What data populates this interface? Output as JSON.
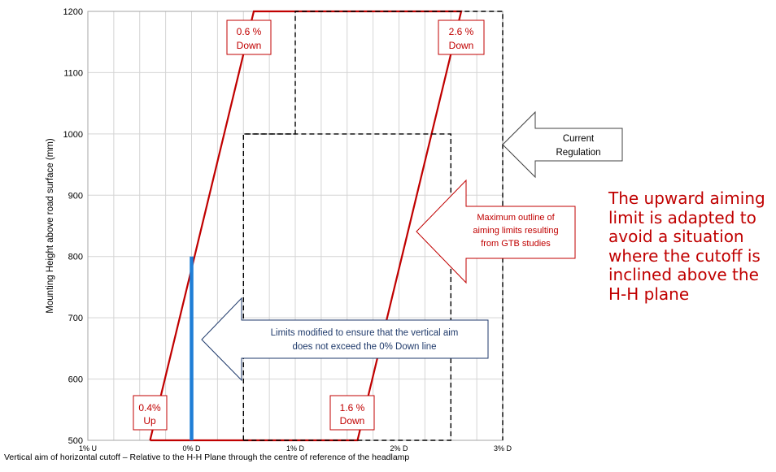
{
  "colors": {
    "red": "#c00000",
    "blue": "#1f7ed6",
    "navy": "#1f3a6b",
    "grid": "#d4d4d4",
    "black": "#000000"
  },
  "side_note": "The upward aiming limit is adapted to avoid a situation where the cutoff is inclined above the H-H plane",
  "chart_data": {
    "type": "line",
    "xlabel": "Vertical aim of horizontal cutoff – Relative to the H-H Plane through the centre of reference of the headlamp",
    "ylabel": "Mounting Height above road surface (mm)",
    "xlim": [
      -1,
      3
    ],
    "ylim": [
      500,
      1200
    ],
    "x_ticks": [
      -1,
      0,
      1,
      2,
      3
    ],
    "x_tick_labels": [
      "1% U",
      "0% D",
      "1% D",
      "2% D",
      "3% D"
    ],
    "y_ticks": [
      500,
      600,
      700,
      800,
      900,
      1000,
      1100,
      1200
    ],
    "y_tick_labels": [
      "500",
      "600",
      "700",
      "800",
      "900",
      "1000",
      "1100",
      "1200"
    ],
    "grid": true,
    "series": [
      {
        "style": "red-solid",
        "points": [
          [
            -0.4,
            500
          ],
          [
            1.6,
            500
          ],
          [
            2.6,
            1200
          ],
          [
            0.6,
            1200
          ],
          [
            -0.4,
            500
          ]
        ]
      },
      {
        "style": "black-dashed",
        "points": [
          [
            0.5,
            500
          ],
          [
            0.5,
            1000
          ],
          [
            1.0,
            1000
          ],
          [
            1.0,
            1200
          ],
          [
            3.0,
            1200
          ],
          [
            3.0,
            500
          ]
        ]
      },
      {
        "style": "black-dashed",
        "points": [
          [
            0.5,
            500
          ],
          [
            2.5,
            500
          ],
          [
            2.5,
            1000
          ],
          [
            0.5,
            1000
          ]
        ]
      },
      {
        "style": "blue-solid",
        "points": [
          [
            0,
            500
          ],
          [
            0,
            800
          ]
        ]
      }
    ],
    "corner_labels": [
      {
        "line1": "0.6 %",
        "line2": "Down"
      },
      {
        "line1": "2.6 %",
        "line2": "Down"
      },
      {
        "line1": "0.4%",
        "line2": "Up"
      },
      {
        "line1": "1.6 %",
        "line2": "Down"
      }
    ],
    "annotations": {
      "current_regulation": [
        "Current",
        "Regulation"
      ],
      "gtb": [
        "Maximum outline of",
        "aiming limits resulting",
        "from GTB studies"
      ],
      "limits": [
        "Limits modified to ensure that the vertical aim",
        "does not exceed the 0% Down line"
      ]
    }
  }
}
